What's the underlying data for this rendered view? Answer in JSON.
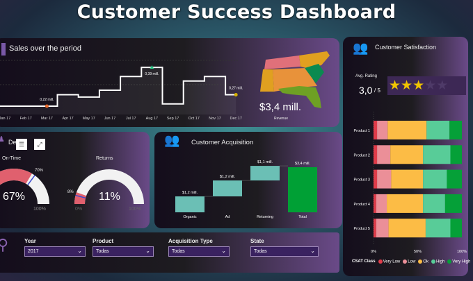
{
  "title": "Customer Success Dashboard",
  "sales": {
    "title": "Sales over the period",
    "revenue_value": "$3,4 mill.",
    "revenue_label": "Revenue",
    "months": [
      "Jan 17",
      "Feb 17",
      "Mar 17",
      "Apr 17",
      "May 17",
      "Jun 17",
      "Jul 17",
      "Aug 17",
      "Sep 17",
      "Oct 17",
      "Nov 17",
      "Dec 17"
    ],
    "values_mill": [
      0.22,
      0.22,
      0.22,
      0.27,
      0.26,
      0.29,
      0.35,
      0.39,
      0.23,
      0.33,
      0.35,
      0.27
    ],
    "labels": [
      {
        "month": "Mar 17",
        "text": "0,22 mill.",
        "color": "#e8692c"
      },
      {
        "month": "Aug 17",
        "text": "0,39 mill.",
        "color": "#2ecc8a"
      },
      {
        "month": "Dec 17",
        "text": "0,27 mill.",
        "color": "#d4b000"
      }
    ],
    "map_colors": [
      "#e0707a",
      "#e0a020",
      "#e8923a",
      "#0a8a50",
      "#6ea024"
    ]
  },
  "delivery": {
    "title": "De",
    "ontime": {
      "label": "On-Time",
      "value": "67%",
      "target": "70%",
      "max": "100%",
      "fraction": 0.67,
      "target_fraction": 0.7
    },
    "returns": {
      "label": "Returns",
      "value": "11%",
      "target": "8%",
      "min": "0%",
      "max": "100%",
      "fraction": 0.11,
      "target_fraction": 0.08
    },
    "colors": {
      "fill": "#e0606e",
      "track": "#f2f2f2",
      "target": "#3a4ad0"
    }
  },
  "acquisition": {
    "title": "Customer Acquisition",
    "categories": [
      "Organic",
      "Ad",
      "Returning",
      "Total"
    ],
    "values_mill": [
      1.2,
      1.2,
      1.1,
      3.4
    ],
    "labels": [
      "$1,2 mill.",
      "$1,2 mill.",
      "$1,1 mill.",
      "$3,4 mill."
    ],
    "colors": {
      "step": "#6bbfb5",
      "total": "#00a035"
    }
  },
  "filters": [
    {
      "label": "Year",
      "value": "2017"
    },
    {
      "label": "Product",
      "value": "Todas"
    },
    {
      "label": "Acquisition Type",
      "value": "Todas"
    },
    {
      "label": "State",
      "value": "Todas"
    }
  ],
  "satisfaction": {
    "title": "Customer Satisfaction",
    "avg_label": "Avg. Rating",
    "rating": "3,0",
    "rating_max": "/ 5",
    "stars": 3,
    "stars_total": 5,
    "products": [
      "Product 1",
      "Product 2",
      "Product 3",
      "Product 4",
      "Product 5"
    ],
    "classes": [
      {
        "name": "Very Low",
        "color": "#e03c4a"
      },
      {
        "name": "Low",
        "color": "#eb8f98"
      },
      {
        "name": "Ok",
        "color": "#fcbc45"
      },
      {
        "name": "High",
        "color": "#58cc98"
      },
      {
        "name": "Very High",
        "color": "#05a038"
      }
    ],
    "shares_pct": [
      [
        4,
        12,
        44,
        26,
        14
      ],
      [
        4,
        15,
        37,
        31,
        13
      ],
      [
        4,
        16,
        36,
        27,
        17
      ],
      [
        3,
        12,
        41,
        25,
        19
      ],
      [
        3,
        14,
        42,
        28,
        13
      ]
    ],
    "axis": [
      "0%",
      "50%",
      "100%"
    ],
    "legend_title": "CSAT Class"
  }
}
